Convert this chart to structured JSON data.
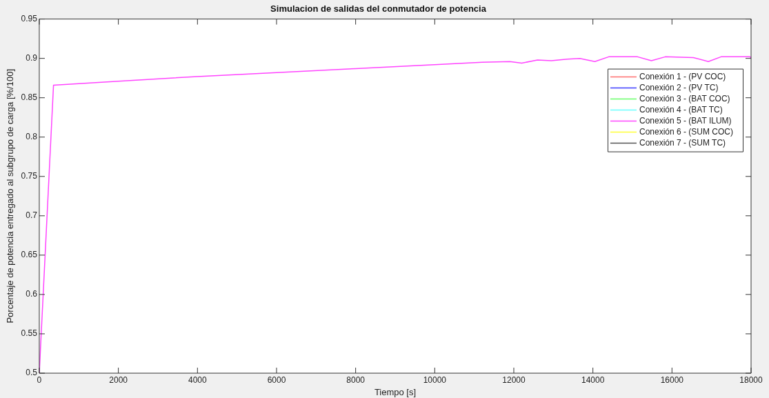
{
  "chart_data": {
    "type": "line",
    "title": "Simulacion de salidas del conmutador de potencia",
    "xlabel": "Tiempo [s]",
    "ylabel": "Porcentaje de potencia entregado al subgrupo de carga [%/100]",
    "x": [
      0,
      360,
      2000,
      4000,
      6000,
      8000,
      10000,
      11200,
      11900,
      12200,
      12600,
      12950,
      13350,
      13670,
      14050,
      14400,
      15130,
      15480,
      15830,
      16540,
      16920,
      17240,
      17970,
      18000
    ],
    "series": [
      {
        "name": "Conexión 1 - (PV COC)",
        "color": "#ff6e6e",
        "values": [
          null,
          null,
          null,
          null,
          null,
          null,
          null,
          null,
          null,
          null,
          null,
          null,
          null,
          null,
          null,
          null,
          null,
          null,
          null,
          null,
          null,
          null,
          null,
          null
        ]
      },
      {
        "name": "Conexión 2 - (PV TC)",
        "color": "#3b3bff",
        "values": [
          null,
          null,
          null,
          null,
          null,
          null,
          null,
          null,
          null,
          null,
          null,
          null,
          null,
          null,
          null,
          null,
          null,
          null,
          null,
          null,
          null,
          null,
          null,
          null
        ]
      },
      {
        "name": "Conexión 3 - (BAT COC)",
        "color": "#66ff66",
        "values": [
          null,
          null,
          null,
          null,
          null,
          null,
          null,
          null,
          null,
          null,
          null,
          null,
          null,
          null,
          null,
          null,
          null,
          null,
          null,
          null,
          null,
          null,
          null,
          null
        ]
      },
      {
        "name": "Conexión 4 - (BAT TC)",
        "color": "#66ffff",
        "values": [
          null,
          null,
          null,
          null,
          null,
          null,
          null,
          null,
          null,
          null,
          null,
          null,
          null,
          null,
          null,
          null,
          null,
          null,
          null,
          null,
          null,
          null,
          null,
          null
        ]
      },
      {
        "name": "Conexión 5 - (BAT ILUM)",
        "color": "#ff44ff",
        "values": [
          0.5,
          0.866,
          0.871,
          0.877,
          0.882,
          0.887,
          0.892,
          0.895,
          0.896,
          0.894,
          0.898,
          0.897,
          0.899,
          0.9,
          0.896,
          0.902,
          0.902,
          0.897,
          0.902,
          0.901,
          0.896,
          0.902,
          0.902,
          0.901
        ]
      },
      {
        "name": "Conexión 6 - (SUM COC)",
        "color": "#ffff33",
        "values": [
          null,
          null,
          null,
          null,
          null,
          null,
          null,
          null,
          null,
          null,
          null,
          null,
          null,
          null,
          null,
          null,
          null,
          null,
          null,
          null,
          null,
          null,
          null,
          null
        ]
      },
      {
        "name": "Conexión 7 - (SUM TC)",
        "color": "#555555",
        "values": [
          null,
          null,
          null,
          null,
          null,
          null,
          null,
          null,
          null,
          null,
          null,
          null,
          null,
          null,
          null,
          null,
          null,
          null,
          null,
          null,
          null,
          null,
          null,
          null
        ]
      }
    ],
    "xlim": [
      0,
      18000
    ],
    "xticks": [
      0,
      2000,
      4000,
      6000,
      8000,
      10000,
      12000,
      14000,
      16000,
      18000
    ],
    "ylim": [
      0.5,
      0.95
    ],
    "yticks": [
      0.5,
      0.55,
      0.6,
      0.65,
      0.7,
      0.75,
      0.8,
      0.85,
      0.9,
      0.95
    ],
    "legend": "top right",
    "marker": "none",
    "line_style": "solid"
  }
}
